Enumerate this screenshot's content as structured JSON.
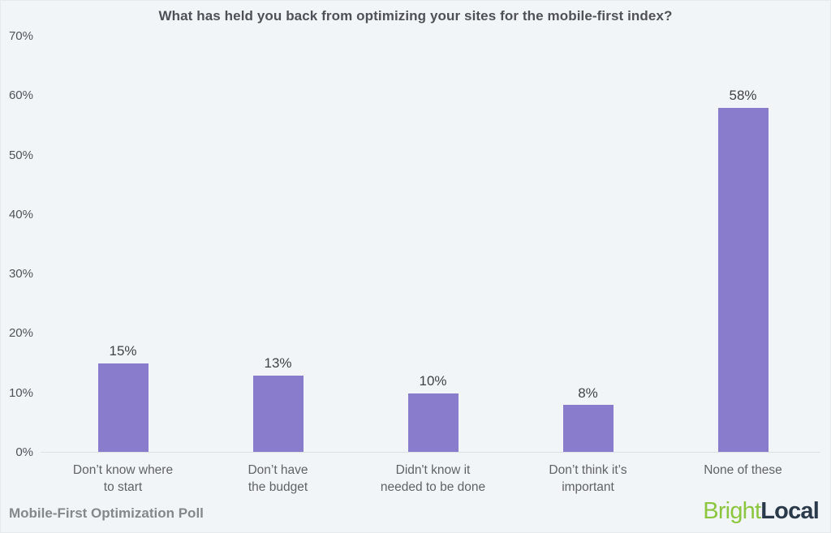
{
  "footer": {
    "source_label": "Mobile-First Optimization Poll"
  },
  "logo": {
    "part1": "Bright",
    "part2": "Local",
    "green": "#8CC63F",
    "dark": "#2B3A4A"
  },
  "chart_data": {
    "type": "bar",
    "title": "What has held you back from optimizing your sites for the mobile-first index?",
    "categories": [
      "Don’t know where to start",
      "Don’t have the budget",
      "Didn't know it needed to be done",
      "Don’t think it’s important",
      "None of these"
    ],
    "category_lines": [
      [
        "Don’t know where",
        "to start"
      ],
      [
        "Don’t have",
        "the budget"
      ],
      [
        "Didn't know it",
        "needed to be done"
      ],
      [
        "Don’t think it’s",
        "important"
      ],
      [
        "None of these"
      ]
    ],
    "values": [
      15,
      13,
      10,
      8,
      58
    ],
    "value_labels": [
      "15%",
      "13%",
      "10%",
      "8%",
      "58%"
    ],
    "xlabel": "",
    "ylabel": "",
    "ylim": [
      0,
      70
    ],
    "yticks": [
      0,
      10,
      20,
      30,
      40,
      50,
      60,
      70
    ],
    "ytick_labels": [
      "0%",
      "10%",
      "20%",
      "30%",
      "40%",
      "50%",
      "60%",
      "70%"
    ],
    "bar_color": "#8A7CCD",
    "background_color": "#F2F5F8",
    "grid": false,
    "legend": false
  }
}
